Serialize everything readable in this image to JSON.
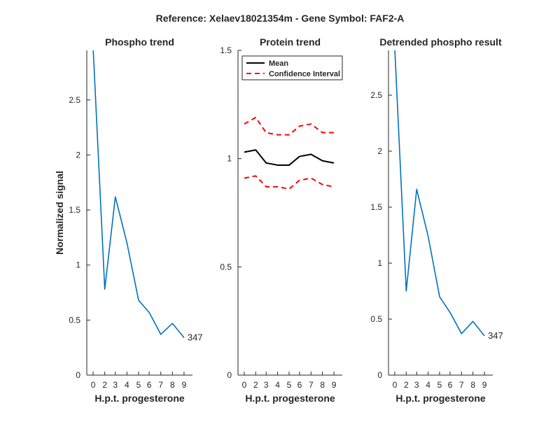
{
  "figure_title": "Reference:  Xelaev18021354m - Gene Symbol:  FAF2-A",
  "colors": {
    "phospho_line": "#0072BD",
    "mean_line": "#000000",
    "ci_line": "#FF0000",
    "axis": "#262626"
  },
  "chart_data": [
    {
      "type": "line",
      "title": "Phospho trend",
      "xlabel": "H.p.t. progesterone",
      "ylabel": "Normalized signal",
      "categories": [
        "0",
        "2",
        "3",
        "4",
        "5",
        "6",
        "7",
        "8",
        "9"
      ],
      "ylim": [
        0,
        2.95
      ],
      "yticks": [
        0,
        0.5,
        1,
        1.5,
        2,
        2.5
      ],
      "series": [
        {
          "values": [
            2.97,
            0.78,
            1.62,
            1.2,
            0.68,
            0.57,
            0.37,
            0.47,
            0.34
          ]
        }
      ],
      "end_label": "347",
      "grid": false
    },
    {
      "type": "line",
      "title": "Protein trend",
      "xlabel": "H.p.t. progesterone",
      "ylabel": "",
      "categories": [
        "0",
        "2",
        "3",
        "4",
        "5",
        "6",
        "7",
        "8",
        "9"
      ],
      "ylim": [
        0,
        1.5
      ],
      "yticks": [
        0,
        0.5,
        1,
        1.5
      ],
      "legend_position": "top-left",
      "series": [
        {
          "name": "Mean",
          "style": "solid",
          "values": [
            1.03,
            1.04,
            0.98,
            0.97,
            0.97,
            1.01,
            1.02,
            0.99,
            0.98
          ]
        },
        {
          "name": "Confidence Interval",
          "style": "dashed",
          "values": [
            1.16,
            1.19,
            1.12,
            1.11,
            1.11,
            1.15,
            1.16,
            1.12,
            1.12
          ]
        },
        {
          "style": "dashed",
          "values": [
            0.91,
            0.92,
            0.87,
            0.87,
            0.86,
            0.9,
            0.91,
            0.88,
            0.87
          ]
        }
      ],
      "grid": false
    },
    {
      "type": "line",
      "title": "Detrended phospho result",
      "xlabel": "H.p.t. progesterone",
      "ylabel": "",
      "categories": [
        "0",
        "2",
        "3",
        "4",
        "5",
        "6",
        "7",
        "8",
        "9"
      ],
      "ylim": [
        0,
        2.9
      ],
      "yticks": [
        0,
        0.5,
        1,
        1.5,
        2,
        2.5
      ],
      "series": [
        {
          "values": [
            2.92,
            0.75,
            1.66,
            1.24,
            0.7,
            0.56,
            0.37,
            0.48,
            0.35
          ]
        }
      ],
      "end_label": "347",
      "grid": false
    }
  ]
}
